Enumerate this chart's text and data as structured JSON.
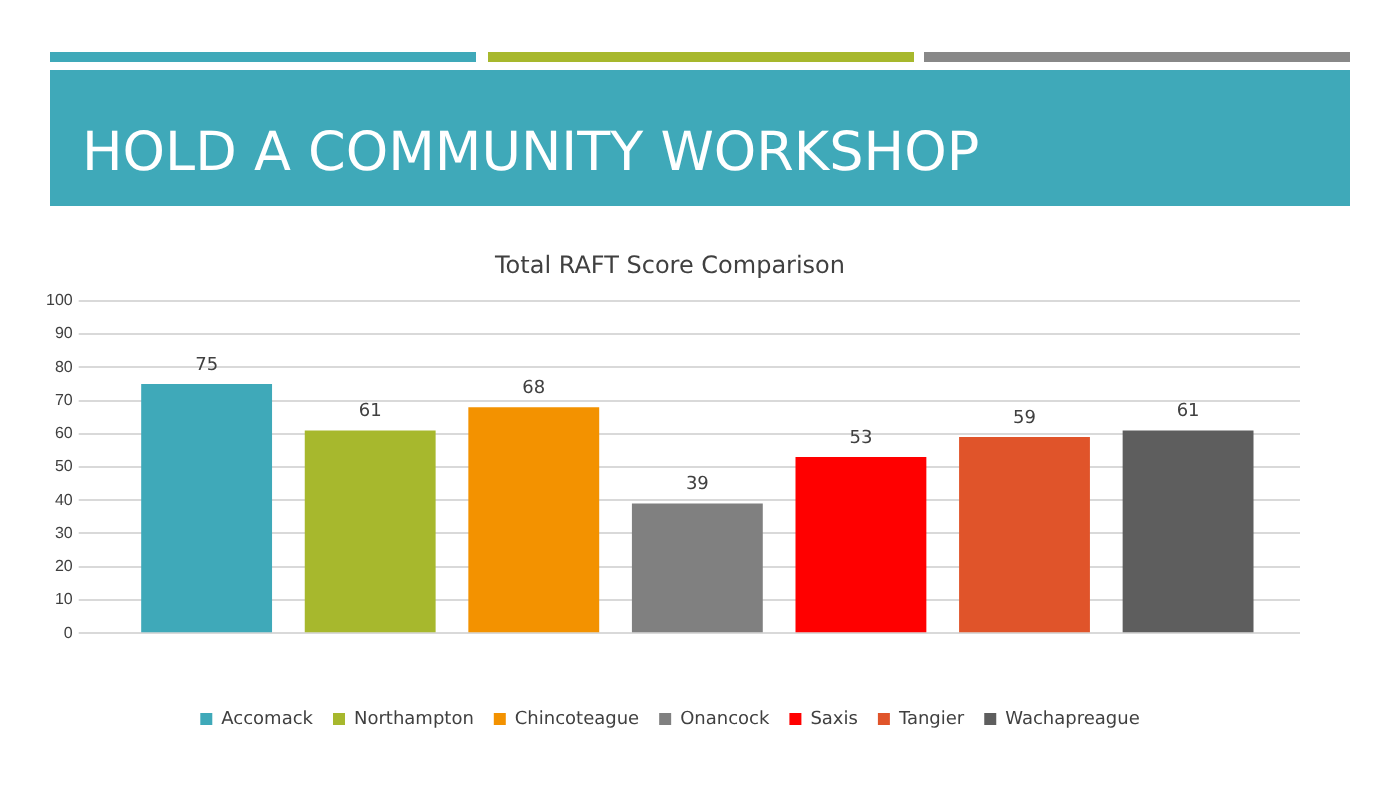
{
  "chart_data": {
    "type": "bar",
    "title": "Total RAFT Score Comparison",
    "annotations": [
      "HOLD A COMMUNITY WORKSHOP"
    ],
    "categories": [
      null
    ],
    "series": [
      {
        "name": "Accomack",
        "color": "#3fa9b9",
        "values": [
          75
        ]
      },
      {
        "name": "Northampton",
        "color": "#a7b82d",
        "values": [
          61
        ]
      },
      {
        "name": "Chincoteague",
        "color": "#f39200",
        "values": [
          68
        ]
      },
      {
        "name": "Onancock",
        "color": "#808080",
        "values": [
          39
        ]
      },
      {
        "name": "Saxis",
        "color": "#ff0000",
        "values": [
          53
        ]
      },
      {
        "name": "Tangier",
        "color": "#e0542a",
        "values": [
          59
        ]
      },
      {
        "name": "Wachapreague",
        "color": "#5e5e5e",
        "values": [
          61
        ]
      }
    ],
    "ylim": [
      0,
      100
    ],
    "yticks": [
      0,
      10,
      20,
      30,
      40,
      50,
      60,
      70,
      80,
      90,
      100
    ],
    "grid": "y",
    "legend": "bottom",
    "data_labels": true
  }
}
